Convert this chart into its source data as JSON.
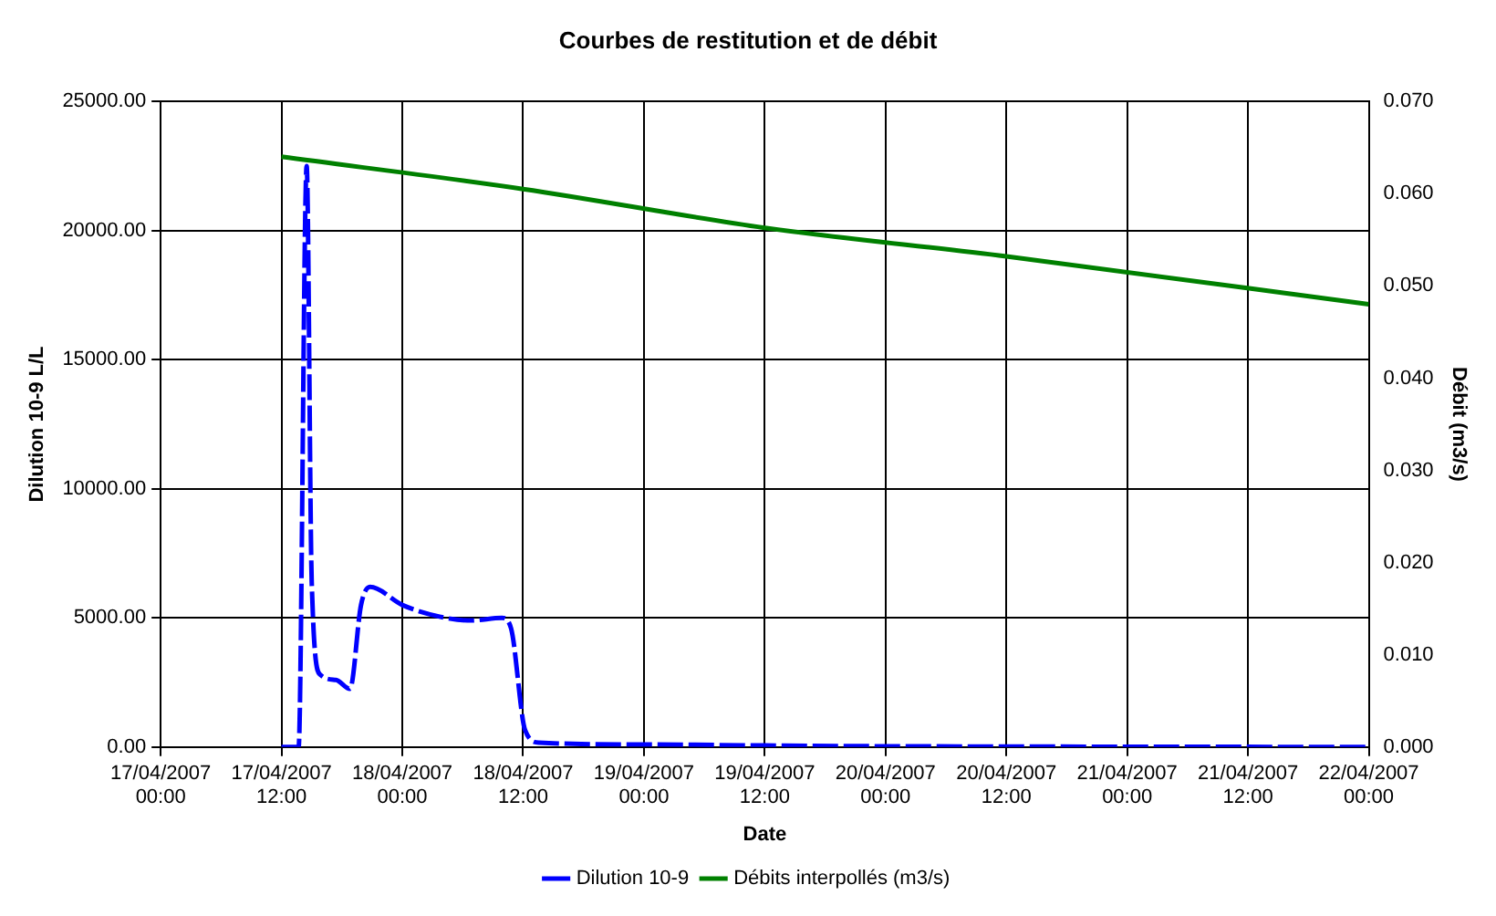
{
  "chart_data": {
    "type": "line",
    "title": "Courbes de restitution et de débit",
    "xlabel": "Date",
    "ylabel": "Dilution 10-9 L/L",
    "y2label": "Débit (m3/s)",
    "xlim": [
      "2007-04-17T00:00",
      "2007-04-22T00:00"
    ],
    "xticks": [
      {
        "value": "2007-04-17T00:00",
        "label": "17/04/2007 00:00"
      },
      {
        "value": "2007-04-17T12:00",
        "label": "17/04/2007 12:00"
      },
      {
        "value": "2007-04-18T00:00",
        "label": "18/04/2007 00:00"
      },
      {
        "value": "2007-04-18T12:00",
        "label": "18/04/2007 12:00"
      },
      {
        "value": "2007-04-19T00:00",
        "label": "19/04/2007 00:00"
      },
      {
        "value": "2007-04-19T12:00",
        "label": "19/04/2007 12:00"
      },
      {
        "value": "2007-04-20T00:00",
        "label": "20/04/2007 00:00"
      },
      {
        "value": "2007-04-20T12:00",
        "label": "20/04/2007 12:00"
      },
      {
        "value": "2007-04-21T00:00",
        "label": "21/04/2007 00:00"
      },
      {
        "value": "2007-04-21T12:00",
        "label": "21/04/2007 12:00"
      },
      {
        "value": "2007-04-22T00:00",
        "label": "22/04/2007 00:00"
      }
    ],
    "ylim": [
      0,
      25000
    ],
    "yticks": [
      {
        "value": 0,
        "label": "0.00"
      },
      {
        "value": 5000,
        "label": "5000.00"
      },
      {
        "value": 10000,
        "label": "10000.00"
      },
      {
        "value": 15000,
        "label": "15000.00"
      },
      {
        "value": 20000,
        "label": "20000.00"
      },
      {
        "value": 25000,
        "label": "25000.00"
      }
    ],
    "y2lim": [
      0,
      0.07
    ],
    "y2ticks": [
      {
        "value": 0,
        "label": "0.000"
      },
      {
        "value": 0.01,
        "label": "0.010"
      },
      {
        "value": 0.02,
        "label": "0.020"
      },
      {
        "value": 0.03,
        "label": "0.030"
      },
      {
        "value": 0.04,
        "label": "0.040"
      },
      {
        "value": 0.05,
        "label": "0.050"
      },
      {
        "value": 0.06,
        "label": "0.060"
      },
      {
        "value": 0.07,
        "label": "0.070"
      }
    ],
    "grid": true,
    "legend": "bottom",
    "marker": "none",
    "series": [
      {
        "name": "Dilution 10-9",
        "color": "#0000ff",
        "line_style": "dashed",
        "x": [
          "2007-04-17T12:00",
          "2007-04-17T13:42",
          "2007-04-17T14:30",
          "2007-04-17T15:00",
          "2007-04-17T15:51",
          "2007-04-17T17:24",
          "2007-04-17T18:48",
          "2007-04-17T19:54",
          "2007-04-17T20:48",
          "2007-04-18T00:00",
          "2007-04-18T03:42",
          "2007-04-18T06:48",
          "2007-04-18T09:54",
          "2007-04-18T10:48",
          "2007-04-18T12:12",
          "2007-04-18T13:36",
          "2007-04-19T00:00",
          "2007-04-19T12:00",
          "2007-04-20T00:00",
          "2007-04-20T12:00",
          "2007-04-22T00:00"
        ],
        "values": [
          0,
          0,
          22500,
          6400,
          2800,
          2600,
          2250,
          5500,
          6200,
          5500,
          5050,
          4900,
          5000,
          4600,
          650,
          170,
          100,
          60,
          30,
          20,
          0
        ]
      },
      {
        "name": "Débits interpollés (m3/s)",
        "color": "#008000",
        "axis": "y2",
        "x": [
          "2007-04-17T12:00",
          "2007-04-18T12:00",
          "2007-04-19T12:00",
          "2007-04-20T12:00",
          "2007-04-22T00:00"
        ],
        "values": [
          0.064,
          0.0605,
          0.0563,
          0.0532,
          0.048
        ]
      }
    ]
  }
}
